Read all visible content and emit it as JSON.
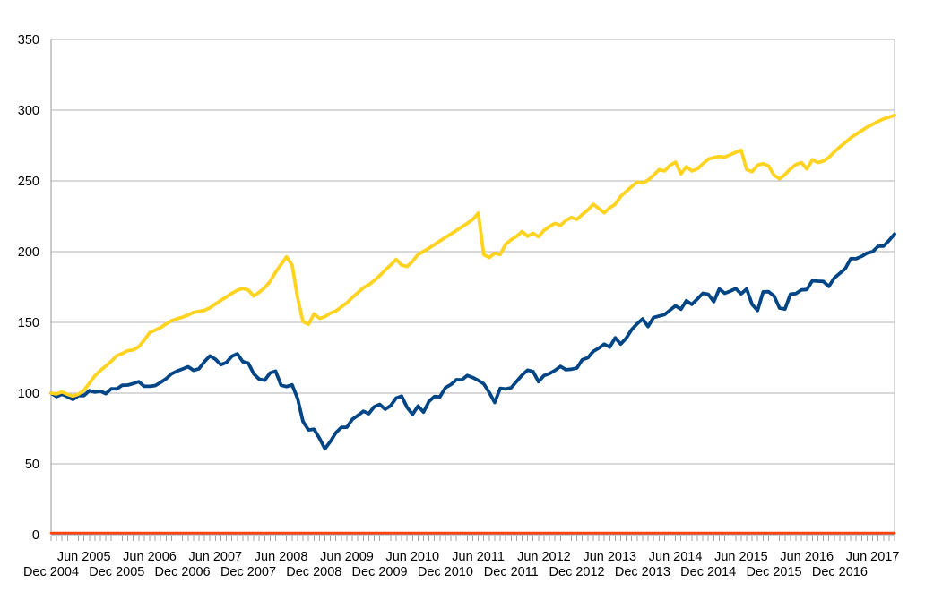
{
  "chart_data": {
    "type": "line",
    "title": "",
    "legend": "none",
    "grid": "horizontal",
    "background": "#ffffff",
    "x_axis": {
      "start_label": "Dec 2004",
      "points_are_monthly": true,
      "minor_tick_every_months": 1,
      "label_every_months": 12,
      "row1_first_month_index": 6,
      "row2_first_month_index": 0,
      "tick_labels_row1": [
        "Jun 2005",
        "Jun 2006",
        "Jun 2007",
        "Jun 2008",
        "Jun 2009",
        "Jun 2010",
        "Jun 2011",
        "Jun 2012",
        "Jun 2013",
        "Jun 2014",
        "Jun 2015",
        "Jun 2016",
        "Jun 2017"
      ],
      "tick_labels_row2": [
        "Dec 2004",
        "Dec 2005",
        "Dec 2006",
        "Dec 2007",
        "Dec 2008",
        "Dec 2009",
        "Dec 2010",
        "Dec 2011",
        "Dec 2012",
        "Dec 2013",
        "Dec 2014",
        "Dec 2015",
        "Dec 2016"
      ]
    },
    "y_axis": {
      "min": 0,
      "max": 350,
      "ticks": [
        0,
        50,
        100,
        150,
        200,
        250,
        300,
        350
      ]
    },
    "series": [
      {
        "name": "dark-blue-line",
        "color": "#004586",
        "width": 3.8,
        "values": [
          100.0,
          97.5,
          99.3,
          97.4,
          95.5,
          98.3,
          98.3,
          101.8,
          100.7,
          101.4,
          99.6,
          103.1,
          103.0,
          105.6,
          105.7,
          106.8,
          108.1,
          104.8,
          104.8,
          105.3,
          107.6,
          110.2,
          113.7,
          115.6,
          117.0,
          118.7,
          116.1,
          117.2,
          122.3,
          126.3,
          124.0,
          120.1,
          121.6,
          126.0,
          127.8,
          122.2,
          121.2,
          113.7,
          109.8,
          109.1,
          114.3,
          115.5,
          105.6,
          104.6,
          105.9,
          96.2,
          79.9,
          74.0,
          74.5,
          68.1,
          60.7,
          65.8,
          72.0,
          75.8,
          75.9,
          81.5,
          84.2,
          87.2,
          85.5,
          90.4,
          92.0,
          88.6,
          91.1,
          96.5,
          97.9,
          89.9,
          85.0,
          90.9,
          86.6,
          94.2,
          97.6,
          97.4,
          103.8,
          106.1,
          109.5,
          109.4,
          112.5,
          111.0,
          109.0,
          106.6,
          100.6,
          93.4,
          103.4,
          102.9,
          103.8,
          108.3,
          112.7,
          116.2,
          115.3,
          108.1,
          112.4,
          113.8,
          116.1,
          118.9,
          116.5,
          116.9,
          117.7,
          123.6,
          125.0,
          129.5,
          131.8,
          134.6,
          132.5,
          139.1,
          134.7,
          138.8,
          144.9,
          149.0,
          152.5,
          147.1,
          153.4,
          154.5,
          155.5,
          158.7,
          161.7,
          159.3,
          165.3,
          162.7,
          166.5,
          170.6,
          169.9,
          164.6,
          173.7,
          170.6,
          172.1,
          173.9,
          170.2,
          173.6,
          162.7,
          158.4,
          171.6,
          171.7,
          168.7,
          160.1,
          159.4,
          170.0,
          170.4,
          173.0,
          173.2,
          179.4,
          179.1,
          178.9,
          175.4,
          181.4,
          184.7,
          188.0,
          195.0,
          195.0,
          196.7,
          199.0,
          200.0,
          203.8,
          203.9,
          207.9,
          212.5
        ]
      },
      {
        "name": "yellow-line",
        "color": "#ffd320",
        "width": 3.8,
        "values": [
          100.0,
          99.4,
          100.9,
          99.2,
          97.9,
          99.3,
          102.0,
          107.0,
          112.3,
          116.0,
          119.2,
          122.5,
          126.5,
          128.0,
          130.0,
          130.6,
          132.8,
          137.5,
          142.8,
          144.5,
          146.3,
          148.9,
          151.2,
          152.5,
          153.7,
          155.2,
          157.0,
          157.7,
          158.5,
          160.3,
          163.0,
          165.5,
          168.0,
          170.5,
          172.7,
          174.0,
          172.9,
          168.6,
          171.3,
          174.5,
          179.0,
          185.5,
          191.0,
          196.3,
          190.5,
          167.5,
          150.5,
          148.7,
          156.0,
          152.8,
          154.0,
          156.5,
          158.0,
          161.0,
          163.8,
          167.6,
          171.0,
          174.5,
          176.5,
          179.5,
          183.0,
          187.0,
          190.5,
          194.5,
          190.5,
          189.5,
          193.2,
          198.0,
          200.2,
          202.5,
          205.0,
          207.5,
          210.0,
          212.5,
          215.0,
          217.5,
          220.0,
          222.8,
          227.3,
          198.0,
          195.8,
          198.9,
          197.9,
          205.3,
          208.4,
          210.9,
          214.3,
          210.9,
          213.0,
          210.6,
          215.0,
          217.8,
          220.0,
          218.6,
          222.1,
          224.2,
          222.8,
          226.3,
          229.4,
          233.5,
          230.5,
          227.5,
          231.0,
          233.5,
          239.0,
          242.5,
          246.0,
          249.2,
          248.5,
          250.5,
          254.0,
          258.0,
          257.0,
          261.0,
          263.2,
          255.0,
          260.0,
          257.0,
          258.5,
          262.0,
          265.4,
          266.5,
          267.3,
          266.8,
          268.5,
          270.2,
          271.7,
          258.0,
          256.5,
          261.1,
          262.2,
          260.5,
          254.0,
          251.5,
          254.5,
          258.5,
          261.5,
          263.0,
          258.5,
          265.0,
          263.0,
          264.0,
          266.6,
          270.5,
          274.0,
          277.0,
          280.5,
          283.0,
          285.5,
          288.0,
          290.0,
          292.0,
          293.8,
          295.0,
          296.4
        ]
      },
      {
        "name": "orange-flat-line",
        "color": "#ff420e",
        "width": 2.8,
        "constant": 1.2
      }
    ]
  },
  "colors": {
    "grid": "#b3b3b3",
    "axis": "#9a9a9a",
    "tick": "#a5a5a5",
    "text": "#000000",
    "background": "#ffffff"
  }
}
